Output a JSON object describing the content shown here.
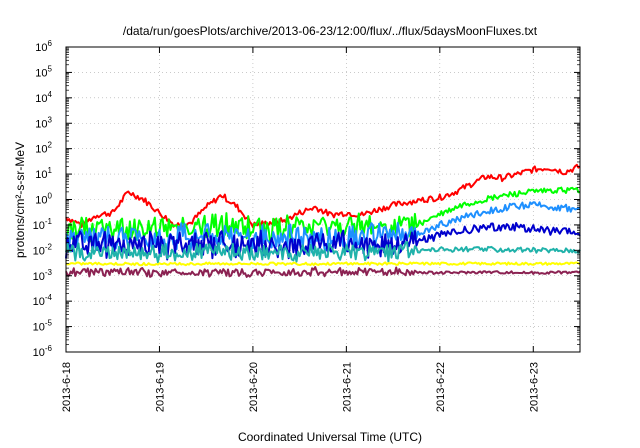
{
  "chart_data": {
    "type": "line",
    "title": "/data/run/goesPlots/archive/2013-06-23/12:00/flux/../flux/5daysMoonFluxes.txt",
    "xlabel": "Coordinated Universal Time (UTC)",
    "ylabel": "protons/cm²-s-sr-MeV",
    "y_scale": "log",
    "ylim": [
      1e-06,
      1000000.0
    ],
    "y_ticks": [
      {
        "base": "10",
        "exp": "-6"
      },
      {
        "base": "10",
        "exp": "-5"
      },
      {
        "base": "10",
        "exp": "-4"
      },
      {
        "base": "10",
        "exp": "-3"
      },
      {
        "base": "10",
        "exp": "-2"
      },
      {
        "base": "10",
        "exp": "-1"
      },
      {
        "base": "10",
        "exp": "0"
      },
      {
        "base": "10",
        "exp": "1"
      },
      {
        "base": "10",
        "exp": "2"
      },
      {
        "base": "10",
        "exp": "3"
      },
      {
        "base": "10",
        "exp": "4"
      },
      {
        "base": "10",
        "exp": "5"
      },
      {
        "base": "10",
        "exp": "6"
      }
    ],
    "x_ticks": [
      "2013-6-18",
      "2013-6-19",
      "2013-6-20",
      "2013-6-21",
      "2013-6-22",
      "2013-6-23"
    ],
    "xlim": [
      "2013-06-18T00:00",
      "2013-06-23T12:00"
    ],
    "grid": true,
    "series": [
      {
        "color": "#ff0000",
        "x": [
          "2013-06-18T00:00",
          "2013-06-18T04:00",
          "2013-06-18T08:00",
          "2013-06-18T12:00",
          "2013-06-18T16:00",
          "2013-06-18T20:00",
          "2013-06-19T00:00",
          "2013-06-19T04:00",
          "2013-06-19T08:00",
          "2013-06-19T12:00",
          "2013-06-19T16:00",
          "2013-06-19T20:00",
          "2013-06-20T00:00",
          "2013-06-20T04:00",
          "2013-06-20T08:00",
          "2013-06-20T12:00",
          "2013-06-20T16:00",
          "2013-06-20T20:00",
          "2013-06-21T00:00",
          "2013-06-21T04:00",
          "2013-06-21T08:00",
          "2013-06-21T12:00",
          "2013-06-21T16:00",
          "2013-06-21T20:00",
          "2013-06-22T00:00",
          "2013-06-22T04:00",
          "2013-06-22T08:00",
          "2013-06-22T12:00",
          "2013-06-22T16:00",
          "2013-06-22T20:00",
          "2013-06-23T00:00",
          "2013-06-23T04:00",
          "2013-06-23T08:00",
          "2013-06-23T12:00"
        ],
        "y": [
          0.2,
          0.1,
          0.25,
          0.3,
          2,
          1,
          0.3,
          0.1,
          0.12,
          0.5,
          1.5,
          0.5,
          0.1,
          0.12,
          0.15,
          0.3,
          0.5,
          0.25,
          0.3,
          0.25,
          0.4,
          0.6,
          0.8,
          1,
          1.2,
          2,
          4,
          8,
          7,
          10,
          15,
          18,
          12,
          20
        ]
      },
      {
        "color": "#00ff00",
        "x": [
          "2013-06-18T00:00",
          "2013-06-18T12:00",
          "2013-06-19T00:00",
          "2013-06-19T12:00",
          "2013-06-20T00:00",
          "2013-06-20T12:00",
          "2013-06-21T00:00",
          "2013-06-21T12:00",
          "2013-06-21T18:00",
          "2013-06-22T00:00",
          "2013-06-22T06:00",
          "2013-06-22T12:00",
          "2013-06-22T18:00",
          "2013-06-23T00:00",
          "2013-06-23T06:00",
          "2013-06-23T12:00"
        ],
        "y": [
          0.06,
          0.07,
          0.08,
          0.09,
          0.07,
          0.07,
          0.08,
          0.08,
          0.1,
          0.25,
          0.6,
          1,
          1.6,
          2,
          2.2,
          2.5
        ]
      },
      {
        "color": "#1e90ff",
        "x": [
          "2013-06-18T00:00",
          "2013-06-18T12:00",
          "2013-06-19T00:00",
          "2013-06-19T12:00",
          "2013-06-20T00:00",
          "2013-06-20T12:00",
          "2013-06-21T00:00",
          "2013-06-21T12:00",
          "2013-06-21T18:00",
          "2013-06-22T00:00",
          "2013-06-22T06:00",
          "2013-06-22T12:00",
          "2013-06-22T18:00",
          "2013-06-23T00:00",
          "2013-06-23T06:00",
          "2013-06-23T12:00"
        ],
        "y": [
          0.03,
          0.035,
          0.03,
          0.035,
          0.03,
          0.03,
          0.035,
          0.035,
          0.04,
          0.1,
          0.2,
          0.35,
          0.5,
          0.6,
          0.5,
          0.4
        ]
      },
      {
        "color": "#0000cd",
        "x": [
          "2013-06-18T00:00",
          "2013-06-18T12:00",
          "2013-06-19T00:00",
          "2013-06-19T12:00",
          "2013-06-20T00:00",
          "2013-06-20T12:00",
          "2013-06-21T00:00",
          "2013-06-21T12:00",
          "2013-06-21T18:00",
          "2013-06-22T00:00",
          "2013-06-22T06:00",
          "2013-06-22T12:00",
          "2013-06-22T18:00",
          "2013-06-23T00:00",
          "2013-06-23T06:00",
          "2013-06-23T12:00"
        ],
        "y": [
          0.015,
          0.018,
          0.015,
          0.018,
          0.015,
          0.015,
          0.018,
          0.02,
          0.022,
          0.04,
          0.06,
          0.08,
          0.09,
          0.07,
          0.055,
          0.05
        ]
      },
      {
        "color": "#20b2aa",
        "x": [
          "2013-06-18T00:00",
          "2013-06-18T12:00",
          "2013-06-19T00:00",
          "2013-06-19T12:00",
          "2013-06-20T00:00",
          "2013-06-20T12:00",
          "2013-06-21T00:00",
          "2013-06-21T12:00",
          "2013-06-22T00:00",
          "2013-06-22T12:00",
          "2013-06-23T00:00",
          "2013-06-23T12:00"
        ],
        "y": [
          0.008,
          0.009,
          0.008,
          0.009,
          0.008,
          0.008,
          0.009,
          0.009,
          0.011,
          0.011,
          0.01,
          0.01
        ]
      },
      {
        "color": "#ffff00",
        "x": [
          "2013-06-18T00:00",
          "2013-06-18T12:00",
          "2013-06-19T00:00",
          "2013-06-19T12:00",
          "2013-06-20T00:00",
          "2013-06-20T12:00",
          "2013-06-21T00:00",
          "2013-06-21T12:00",
          "2013-06-22T00:00",
          "2013-06-22T12:00",
          "2013-06-23T00:00",
          "2013-06-23T12:00"
        ],
        "y": [
          0.003,
          0.003,
          0.0028,
          0.003,
          0.003,
          0.0029,
          0.003,
          0.003,
          0.003,
          0.003,
          0.003,
          0.003
        ]
      },
      {
        "color": "#8b2252",
        "x": [
          "2013-06-18T00:00",
          "2013-06-18T12:00",
          "2013-06-19T00:00",
          "2013-06-19T12:00",
          "2013-06-20T00:00",
          "2013-06-20T12:00",
          "2013-06-21T00:00",
          "2013-06-21T12:00",
          "2013-06-22T00:00",
          "2013-06-22T12:00",
          "2013-06-23T00:00",
          "2013-06-23T12:00"
        ],
        "y": [
          0.0013,
          0.0014,
          0.0013,
          0.0014,
          0.0013,
          0.0014,
          0.0014,
          0.0014,
          0.0013,
          0.0014,
          0.0013,
          0.0014
        ]
      }
    ]
  }
}
